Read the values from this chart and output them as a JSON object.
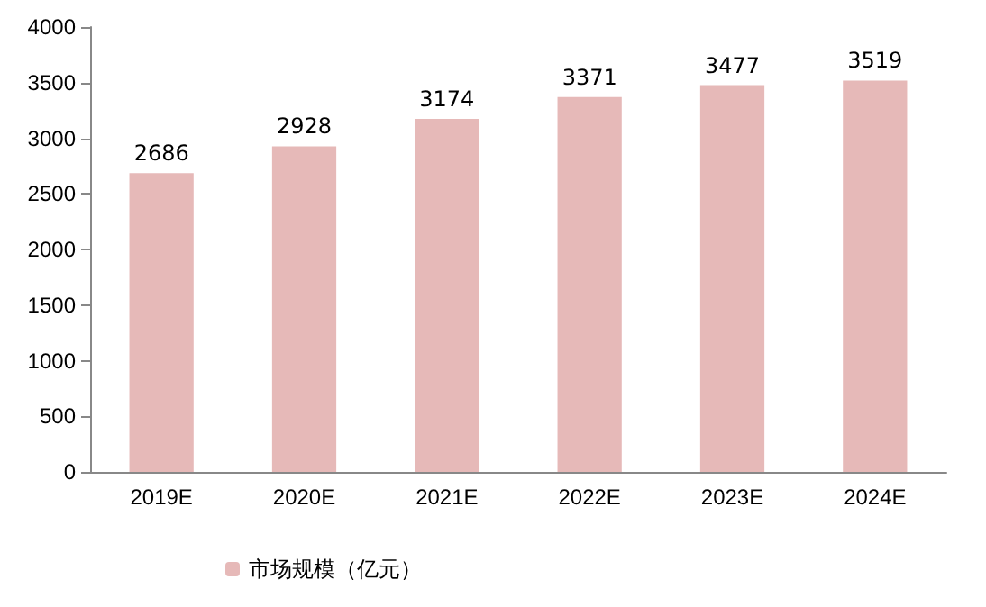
{
  "chart_data": {
    "type": "bar",
    "categories": [
      "2019E",
      "2020E",
      "2021E",
      "2022E",
      "2023E",
      "2024E"
    ],
    "series": [
      {
        "name": "市场规模（亿元）",
        "color": "#e6b9b8",
        "values": [
          2686,
          2928,
          3174,
          3371,
          3477,
          3519
        ]
      }
    ],
    "ylim": [
      0,
      4000
    ],
    "yticks": [
      0,
      500,
      1000,
      1500,
      2000,
      2500,
      3000,
      3500,
      4000
    ],
    "grid": false,
    "legend": "bottom left",
    "data_labels": true
  }
}
